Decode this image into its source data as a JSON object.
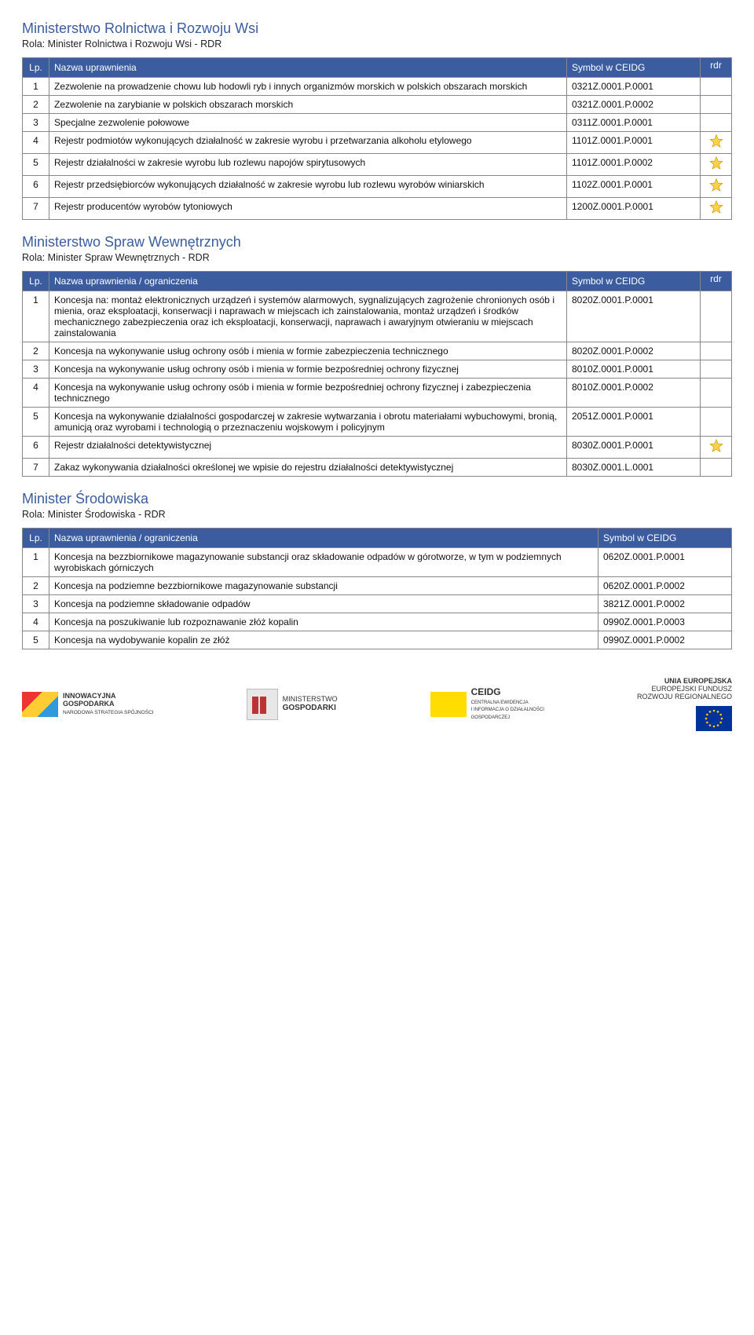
{
  "colors": {
    "header_bg": "#3b5da0",
    "header_fg": "#ffffff",
    "title": "#3b5da0",
    "border": "#888888",
    "star_fill": "#ffd24a",
    "star_stroke": "#cc9900"
  },
  "sections": [
    {
      "title": "Ministerstwo Rolnictwa i Rozwoju Wsi",
      "role": "Rola: Minister Rolnictwa i Rozwoju Wsi - RDR",
      "headers": {
        "lp": "Lp.",
        "name": "Nazwa uprawnienia",
        "sym": "Symbol w CEIDG",
        "rdr": "rdr"
      },
      "has_rdr_header": true,
      "rows": [
        {
          "lp": "1",
          "name": "Zezwolenie na prowadzenie chowu lub hodowli ryb i innych organizmów morskich w polskich obszarach morskich",
          "sym": "0321Z.0001.P.0001",
          "star": false
        },
        {
          "lp": "2",
          "name": "Zezwolenie na zarybianie w polskich obszarach morskich",
          "sym": "0321Z.0001.P.0002",
          "star": false
        },
        {
          "lp": "3",
          "name": "Specjalne zezwolenie połowowe",
          "sym": "0311Z.0001.P.0001",
          "star": false
        },
        {
          "lp": "4",
          "name": "Rejestr podmiotów wykonujących działalność w zakresie wyrobu i przetwarzania alkoholu etylowego",
          "sym": "1101Z.0001.P.0001",
          "star": true
        },
        {
          "lp": "5",
          "name": "Rejestr działalności w zakresie wyrobu lub rozlewu napojów spirytusowych",
          "sym": "1101Z.0001.P.0002",
          "star": true
        },
        {
          "lp": "6",
          "name": "Rejestr przedsiębiorców wykonujących działalność w zakresie wyrobu lub rozlewu wyrobów winiarskich",
          "sym": "1102Z.0001.P.0001",
          "star": true
        },
        {
          "lp": "7",
          "name": "Rejestr producentów wyrobów tytoniowych",
          "sym": "1200Z.0001.P.0001",
          "star": true
        }
      ]
    },
    {
      "title": "Ministerstwo Spraw Wewnętrznych",
      "role": "Rola: Minister Spraw Wewnętrznych - RDR",
      "headers": {
        "lp": "Lp.",
        "name": "Nazwa uprawnienia / ograniczenia",
        "sym": "Symbol w CEIDG",
        "rdr": "rdr"
      },
      "has_rdr_header": true,
      "rows": [
        {
          "lp": "1",
          "name": "Koncesja na: montaż elektronicznych urządzeń i systemów alarmowych, sygnalizujących zagrożenie chronionych osób i mienia, oraz eksploatacji, konserwacji i naprawach w miejscach ich zainstalowania, montaż urządzeń i środków mechanicznego zabezpieczenia oraz ich eksploatacji, konserwacji, naprawach i awaryjnym otwieraniu w miejscach zainstalowania",
          "sym": "8020Z.0001.P.0001",
          "star": false
        },
        {
          "lp": "2",
          "name": "Koncesja na wykonywanie usług ochrony osób i mienia w formie zabezpieczenia technicznego",
          "sym": "8020Z.0001.P.0002",
          "star": false
        },
        {
          "lp": "3",
          "name": "Koncesja na wykonywanie usług ochrony osób i mienia w formie bezpośredniej ochrony fizycznej",
          "sym": "8010Z.0001.P.0001",
          "star": false
        },
        {
          "lp": "4",
          "name": "Koncesja na wykonywanie usług ochrony osób i mienia w formie bezpośredniej ochrony fizycznej i zabezpieczenia technicznego",
          "sym": "8010Z.0001.P.0002",
          "star": false
        },
        {
          "lp": "5",
          "name": "Koncesja na wykonywanie działalności gospodarczej w zakresie wytwarzania i obrotu materiałami wybuchowymi, bronią, amunicją oraz wyrobami i technologią o przeznaczeniu wojskowym i policyjnym",
          "sym": "2051Z.0001.P.0001",
          "star": false
        },
        {
          "lp": "6",
          "name": "Rejestr działalności detektywistycznej",
          "sym": "8030Z.0001.P.0001",
          "star": true
        },
        {
          "lp": "7",
          "name": "Zakaz wykonywania działalności określonej we wpisie do rejestru działalności detektywistycznej",
          "sym": "8030Z.0001.L.0001",
          "star": false
        }
      ]
    },
    {
      "title": "Minister Środowiska",
      "role": "Rola: Minister Środowiska - RDR",
      "headers": {
        "lp": "Lp.",
        "name": "Nazwa uprawnienia / ograniczenia",
        "sym": "Symbol w CEIDG",
        "rdr": ""
      },
      "has_rdr_header": false,
      "rows": [
        {
          "lp": "1",
          "name": "Koncesja na bezzbiornikowe magazynowanie substancji oraz składowanie odpadów w górotworze, w tym w podziemnych wyrobiskach górniczych",
          "sym": "0620Z.0001.P.0001",
          "star": null
        },
        {
          "lp": "2",
          "name": "Koncesja na podziemne bezzbiornikowe magazynowanie substancji",
          "sym": "0620Z.0001.P.0002",
          "star": null
        },
        {
          "lp": "3",
          "name": "Koncesja na podziemne składowanie odpadów",
          "sym": "3821Z.0001.P.0002",
          "star": null
        },
        {
          "lp": "4",
          "name": "Koncesja na poszukiwanie lub rozpoznawanie złóż kopalin",
          "sym": "0990Z.0001.P.0003",
          "star": null
        },
        {
          "lp": "5",
          "name": "Koncesja na wydobywanie kopalin ze złóż",
          "sym": "0990Z.0001.P.0002",
          "star": null
        }
      ]
    }
  ],
  "footer": {
    "innow": {
      "l1": "INNOWACYJNA",
      "l2": "GOSPODARKA",
      "l3": "NARODOWA STRATEGIA SPÓJNOŚCI"
    },
    "gosp": {
      "l1": "MINISTERSTWO",
      "l2": "GOSPODARKI"
    },
    "ceidg": {
      "l1": "CEIDG",
      "l2": "CENTRALNA EWIDENCJA",
      "l3": "I INFORMACJA O DZIAŁALNOŚCI",
      "l4": "GOSPODARCZEJ"
    },
    "eu": {
      "l1": "UNIA EUROPEJSKA",
      "l2": "EUROPEJSKI FUNDUSZ",
      "l3": "ROZWOJU REGIONALNEGO"
    }
  }
}
